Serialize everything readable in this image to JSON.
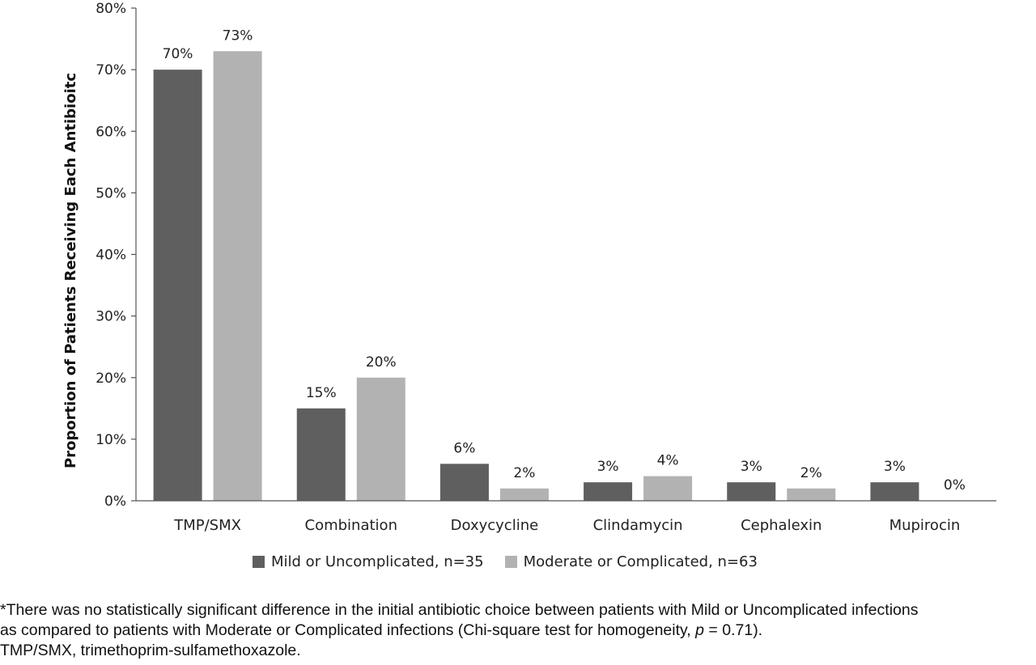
{
  "chart_data": {
    "type": "bar",
    "ylabel": "Proportion of Patients Receiving Each Antibioitc",
    "xlabel": "",
    "ylim": [
      0,
      80
    ],
    "yticks": [
      "0%",
      "10%",
      "20%",
      "30%",
      "40%",
      "50%",
      "60%",
      "70%",
      "80%"
    ],
    "categories": [
      "TMP/SMX",
      "Combination",
      "Doxycycline",
      "Clindamycin",
      "Cephalexin",
      "Mupirocin"
    ],
    "series": [
      {
        "name": "Mild or Uncomplicated, n=35",
        "color": "#5f5f5f",
        "values": [
          70,
          15,
          6,
          3,
          3,
          3
        ],
        "labels": [
          "70%",
          "15%",
          "6%",
          "3%",
          "3%",
          "3%"
        ]
      },
      {
        "name": "Moderate or Complicated, n=63",
        "color": "#b2b2b2",
        "values": [
          73,
          20,
          2,
          4,
          2,
          0
        ],
        "labels": [
          "73%",
          "20%",
          "2%",
          "4%",
          "2%",
          "0%"
        ]
      }
    ],
    "grid": false,
    "legend_position": "bottom"
  },
  "footnote": {
    "line1": "*There was no statistically significant difference in the initial antibiotic choice between patients with Mild or Uncomplicated infections",
    "line2_pre": "as compared to patients with Moderate or Complicated infections (Chi-square test for homogeneity, ",
    "line2_p": "p",
    "line2_post": " = 0.71).",
    "line3": "TMP/SMX, trimethoprim-sulfamethoxazole."
  }
}
